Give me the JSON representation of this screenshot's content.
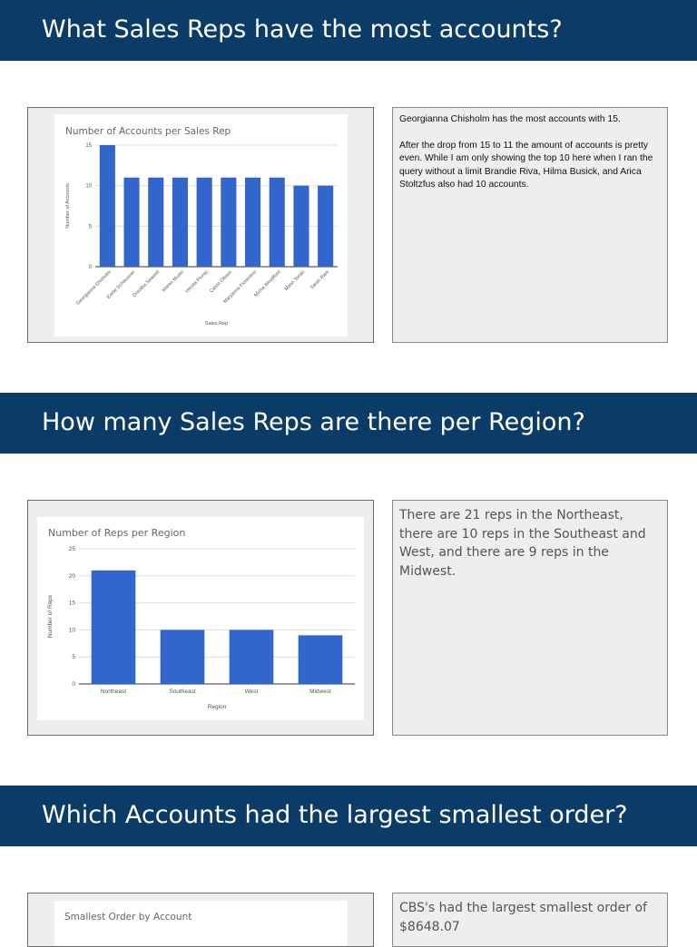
{
  "sections": [
    {
      "heading": "What Sales Reps have the most accounts?",
      "notes": [
        "Georgianna Chisholm has the most accounts with 15.",
        "After the drop from 15 to 11 the amount of accounts is pretty even. While I am only showing the top 10 here when I ran the query without a limit Brandie Riva, Hilma Busick, and Arica Stoltzfus also had 10 accounts."
      ]
    },
    {
      "heading": "How many Sales Reps are there per Region?",
      "notes": [
        "There are 21 reps in the Northeast, there are 10 reps in the Southeast and West, and there are 9 reps in the Midwest."
      ]
    },
    {
      "heading": "Which Accounts had the largest smallest order?",
      "notes": [
        "CBS's had the largest smallest order of $8648.07"
      ]
    }
  ],
  "chart_data": [
    {
      "type": "bar",
      "title": "Number of Accounts per Sales Rep",
      "xlabel": "Sales Rep",
      "ylabel": "Number of Accounts",
      "ylim": [
        0,
        15
      ],
      "yticks": [
        0,
        5,
        10,
        15
      ],
      "categories": [
        "Georgianna Chisholm",
        "Earlie Schleusner",
        "Dorotha Seawell",
        "Maren Musto",
        "Vernita Plump",
        "Calvin Ollison",
        "Maryanna Fiorentino",
        "Micha Woodford",
        "Moon Torian",
        "Sarah Ram"
      ],
      "values": [
        15,
        11,
        11,
        11,
        11,
        11,
        11,
        11,
        10,
        10
      ],
      "grid": true,
      "bar_color": "#3366cc"
    },
    {
      "type": "bar",
      "title": "Number of Reps per Region",
      "xlabel": "Region",
      "ylabel": "Number of Reps",
      "ylim": [
        0,
        25
      ],
      "yticks": [
        0,
        5,
        10,
        15,
        20,
        25
      ],
      "categories": [
        "Northeast",
        "Southeast",
        "West",
        "Midwest"
      ],
      "values": [
        21,
        10,
        10,
        9
      ],
      "grid": true,
      "bar_color": "#3366cc"
    },
    {
      "type": "bar",
      "title": "Smallest Order by Account",
      "categories": [],
      "values": []
    }
  ]
}
